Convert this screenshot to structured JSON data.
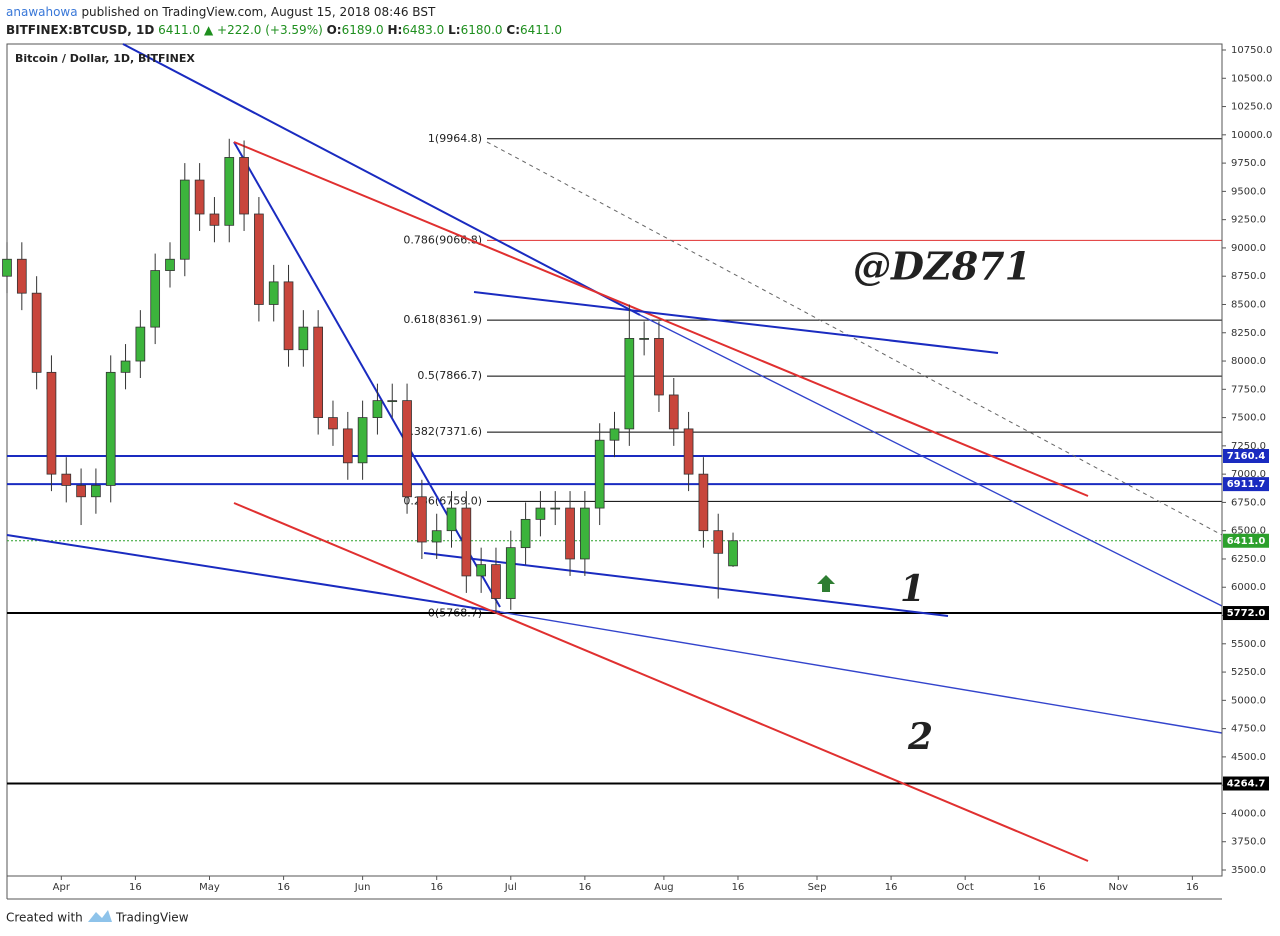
{
  "header": {
    "author": "anawahowa",
    "published": "published on TradingView.com, August 15, 2018 08:46 BST",
    "symbol": "BITFINEX:BTCUSD, 1D",
    "last": "6411.0",
    "arrow": "▲",
    "change": "+222.0 (+3.59%)",
    "ohlc": [
      {
        "key": "O:",
        "value": "6189.0"
      },
      {
        "key": "H:",
        "value": "6483.0"
      },
      {
        "key": "L:",
        "value": "6180.0"
      },
      {
        "key": "C:",
        "value": "6411.0"
      }
    ]
  },
  "footer": {
    "created": "Created with",
    "brand": "TradingView"
  },
  "chart_data": {
    "type": "candlestick",
    "title": "Bitcoin / Dollar, 1D, BITFINEX",
    "up_color": "#3cb43c",
    "down_color": "#c8463c",
    "x": [
      "Mar 21",
      "Mar 24",
      "Mar 27",
      "Mar 30",
      "Apr 2",
      "Apr 5",
      "Apr 8",
      "Apr 11",
      "Apr 14",
      "Apr 17",
      "Apr 20",
      "Apr 23",
      "Apr 26",
      "Apr 29",
      "May 2",
      "May 5",
      "May 8",
      "May 11",
      "May 14",
      "May 17",
      "May 20",
      "May 23",
      "May 26",
      "May 29",
      "Jun 1",
      "Jun 4",
      "Jun 7",
      "Jun 10",
      "Jun 13",
      "Jun 16",
      "Jun 19",
      "Jun 22",
      "Jun 25",
      "Jun 28",
      "Jul 1",
      "Jul 4",
      "Jul 7",
      "Jul 10",
      "Jul 13",
      "Jul 16",
      "Jul 19",
      "Jul 22",
      "Jul 25",
      "Jul 28",
      "Jul 31",
      "Aug 3",
      "Aug 6",
      "Aug 9",
      "Aug 12",
      "Aug 15"
    ],
    "open": [
      8750,
      8900,
      8600,
      7900,
      7000,
      6900,
      6800,
      6900,
      7900,
      8000,
      8300,
      8800,
      8900,
      9600,
      9300,
      9200,
      9800,
      9300,
      8500,
      8700,
      8100,
      8300,
      7500,
      7400,
      7100,
      7500,
      7650,
      7650,
      6800,
      6400,
      6500,
      6700,
      6100,
      6200,
      5900,
      6350,
      6600,
      6700,
      6700,
      6250,
      6700,
      7300,
      7400,
      8200,
      8200,
      7700,
      7400,
      7000,
      6500,
      6189
    ],
    "high": [
      9050,
      9050,
      8750,
      8050,
      7150,
      7050,
      7050,
      8050,
      8150,
      8450,
      8950,
      9050,
      9750,
      9750,
      9450,
      9965,
      9950,
      9450,
      8850,
      8850,
      8450,
      8450,
      7650,
      7550,
      7650,
      7800,
      7800,
      7800,
      6950,
      6650,
      6850,
      6850,
      6350,
      6350,
      6500,
      6750,
      6850,
      6850,
      6850,
      6850,
      7450,
      7550,
      8500,
      8350,
      8350,
      7850,
      7550,
      7150,
      6650,
      6483
    ],
    "low": [
      8600,
      8450,
      7750,
      6850,
      6750,
      6550,
      6650,
      6750,
      7750,
      7850,
      8150,
      8650,
      8750,
      9150,
      9050,
      9050,
      9150,
      8350,
      8350,
      7950,
      7950,
      7350,
      7250,
      6950,
      6950,
      7350,
      7500,
      6650,
      6250,
      6250,
      6350,
      5950,
      5950,
      5769,
      5800,
      6200,
      6450,
      6550,
      6100,
      6100,
      6550,
      7150,
      7250,
      8050,
      7550,
      7250,
      6850,
      6350,
      5900,
      6180
    ],
    "close": [
      8900,
      8600,
      7900,
      7000,
      6900,
      6800,
      6900,
      7900,
      8000,
      8300,
      8800,
      8900,
      9600,
      9300,
      9200,
      9800,
      9300,
      8500,
      8700,
      8100,
      8300,
      7500,
      7400,
      7100,
      7500,
      7650,
      7650,
      6800,
      6400,
      6500,
      6700,
      6100,
      6200,
      5900,
      6350,
      6600,
      6700,
      6700,
      6250,
      6700,
      7300,
      7400,
      8200,
      8200,
      7700,
      7400,
      7000,
      6500,
      6300,
      6411
    ],
    "xlim": [
      "Mar 21",
      "Nov 22"
    ],
    "xticks": [
      {
        "value": "Apr 1",
        "label": "Apr"
      },
      {
        "value": "Apr 16",
        "label": "16"
      },
      {
        "value": "May 1",
        "label": "May"
      },
      {
        "value": "May 16",
        "label": "16"
      },
      {
        "value": "Jun 1",
        "label": "Jun"
      },
      {
        "value": "Jun 16",
        "label": "16"
      },
      {
        "value": "Jul 1",
        "label": "Jul"
      },
      {
        "value": "Jul 16",
        "label": "16"
      },
      {
        "value": "Aug 1",
        "label": "Aug"
      },
      {
        "value": "Aug 16",
        "label": "16"
      },
      {
        "value": "Sep 1",
        "label": "Sep"
      },
      {
        "value": "Sep 16",
        "label": "16"
      },
      {
        "value": "Oct 1",
        "label": "Oct"
      },
      {
        "value": "Oct 16",
        "label": "16"
      },
      {
        "value": "Nov 1",
        "label": "Nov"
      },
      {
        "value": "Nov 16",
        "label": "16"
      }
    ],
    "ylim": [
      3500,
      10750
    ],
    "yticks": [
      {
        "value": 3500,
        "label": "3500.0"
      },
      {
        "value": 3750,
        "label": "3750.0"
      },
      {
        "value": 4000,
        "label": "4000.0"
      },
      {
        "value": 4250,
        "label": "4250.0"
      },
      {
        "value": 4500,
        "label": "4500.0"
      },
      {
        "value": 4750,
        "label": "4750.0"
      },
      {
        "value": 5000,
        "label": "5000.0"
      },
      {
        "value": 5250,
        "label": "5250.0"
      },
      {
        "value": 5500,
        "label": "5500.0"
      },
      {
        "value": 5750,
        "label": "5750.0"
      },
      {
        "value": 6000,
        "label": "6000.0"
      },
      {
        "value": 6250,
        "label": "6250.0"
      },
      {
        "value": 6500,
        "label": "6500.0"
      },
      {
        "value": 6750,
        "label": "6750.0"
      },
      {
        "value": 7000,
        "label": "7000.0"
      },
      {
        "value": 7250,
        "label": "7250.0"
      },
      {
        "value": 7500,
        "label": "7500.0"
      },
      {
        "value": 7750,
        "label": "7750.0"
      },
      {
        "value": 8000,
        "label": "8000.0"
      },
      {
        "value": 8250,
        "label": "8250.0"
      },
      {
        "value": 8500,
        "label": "8500.0"
      },
      {
        "value": 8750,
        "label": "8750.0"
      },
      {
        "value": 9000,
        "label": "9000.0"
      },
      {
        "value": 9250,
        "label": "9250.0"
      },
      {
        "value": 9500,
        "label": "9500.0"
      },
      {
        "value": 9750,
        "label": "9750.0"
      },
      {
        "value": 10000,
        "label": "10000.0"
      },
      {
        "value": 10250,
        "label": "10250.0"
      },
      {
        "value": 10500,
        "label": "10500.0"
      },
      {
        "value": 10750,
        "label": "10750.0"
      }
    ],
    "grid": false,
    "fib_levels": [
      {
        "value": 9964.8,
        "label": "1(9964.8)",
        "color": "#000000"
      },
      {
        "value": 9066.8,
        "label": "0.786(9066.8)",
        "color": "#e03030"
      },
      {
        "value": 8361.9,
        "label": "0.618(8361.9)",
        "color": "#000000"
      },
      {
        "value": 7866.7,
        "label": "0.5(7866.7)",
        "color": "#000000"
      },
      {
        "value": 7371.6,
        "label": "0.382(7371.6)",
        "color": "#000000"
      },
      {
        "value": 6759.0,
        "label": "0.236(6759.0)",
        "color": "#000000"
      },
      {
        "value": 5768.7,
        "label": "0(5768.7)",
        "color": "#000000"
      }
    ],
    "levels": [
      {
        "value": 7160.4,
        "label": "7160.4",
        "color": "#1a2bc0",
        "style": "solid"
      },
      {
        "value": 6911.7,
        "label": "6911.7",
        "color": "#1a2bc0",
        "style": "solid"
      },
      {
        "value": 6411.0,
        "label": "6411.0",
        "color": "#2ca02c",
        "style": "dashed"
      },
      {
        "value": 5772.0,
        "label": "5772.0",
        "color": "#000000",
        "style": "solid"
      },
      {
        "value": 4264.7,
        "label": "4264.7",
        "color": "#000000",
        "style": "solid"
      }
    ],
    "annotations": {
      "handle": "@DZ871",
      "wave_1": "1",
      "wave_2": "2"
    }
  }
}
